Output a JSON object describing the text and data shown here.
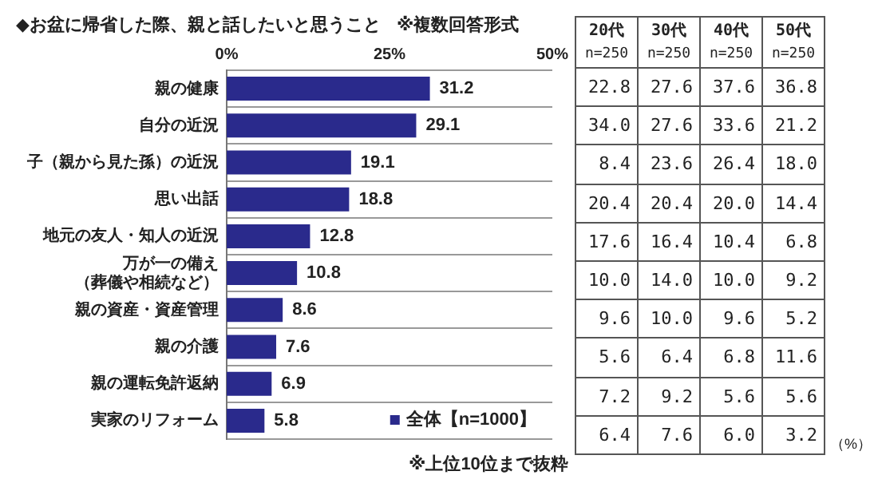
{
  "chart_data": [
    {
      "type": "bar",
      "orientation": "horizontal",
      "title": "◆お盆に帰省した際、親と話したいと思うこと",
      "subtitle": "※複数回答形式",
      "categories": [
        "親の健康",
        "自分の近況",
        "子（親から見た孫）の近況",
        "思い出話",
        "地元の友人・知人の近況",
        "万が一の備え（葬儀や相続など）",
        "親の資産・資産管理",
        "親の介護",
        "親の運転免許返納",
        "実家のリフォーム"
      ],
      "series": [
        {
          "name": "全体【n=1000】",
          "color": "#2a2a8c",
          "values": [
            31.2,
            29.1,
            19.1,
            18.8,
            12.8,
            10.8,
            8.6,
            7.6,
            6.9,
            5.8
          ]
        }
      ],
      "xlim": [
        0,
        50
      ],
      "xticks": [
        {
          "value": 0,
          "label": "0%"
        },
        {
          "value": 25,
          "label": "25%"
        },
        {
          "value": 50,
          "label": "50%"
        }
      ],
      "grid": "y",
      "legend": "bottom right",
      "data_labels": true,
      "annotations": [
        "※上位10位まで抜粋"
      ]
    },
    {
      "type": "heatmap",
      "categories": [
        "20代 n=250",
        "30代 n=250",
        "40代 n=250",
        "50代 n=250"
      ],
      "y_categories": [
        null,
        null,
        null,
        null,
        null,
        null,
        null,
        null,
        null,
        null
      ],
      "cell_labels": [
        [
          "22.8",
          "27.6",
          "37.6",
          "36.8"
        ],
        [
          "34.0",
          "27.6",
          "33.6",
          "21.2"
        ],
        [
          "8.4",
          "23.6",
          "26.4",
          "18.0"
        ],
        [
          "20.4",
          "20.4",
          "20.0",
          "14.4"
        ],
        [
          "17.6",
          "16.4",
          "10.4",
          "6.8"
        ],
        [
          "10.0",
          "14.0",
          "10.0",
          "9.2"
        ],
        [
          "9.6",
          "10.0",
          "9.6",
          "5.2"
        ],
        [
          "5.6",
          "6.4",
          "6.8",
          "11.6"
        ],
        [
          "7.2",
          "9.2",
          "5.6",
          "5.6"
        ],
        [
          "6.4",
          "7.6",
          "6.0",
          "3.2"
        ]
      ],
      "cells": [
        [
          22.8,
          27.6,
          37.6,
          36.8
        ],
        [
          34.0,
          27.6,
          33.6,
          21.2
        ],
        [
          8.4,
          23.6,
          26.4,
          18.0
        ],
        [
          20.4,
          20.4,
          20.0,
          14.4
        ],
        [
          17.6,
          16.4,
          10.4,
          6.8
        ],
        [
          10.0,
          14.0,
          10.0,
          9.2
        ],
        [
          9.6,
          10.0,
          9.6,
          5.2
        ],
        [
          5.6,
          6.4,
          6.8,
          11.6
        ],
        [
          7.2,
          9.2,
          5.6,
          5.6
        ],
        [
          6.4,
          7.6,
          6.0,
          3.2
        ]
      ],
      "data_labels": true,
      "annotations": [
        "（%）"
      ]
    }
  ]
}
